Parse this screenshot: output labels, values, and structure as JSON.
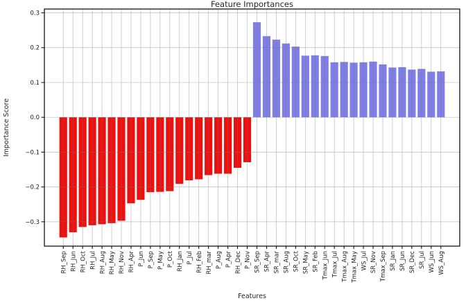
{
  "figure": {
    "title": "Feature Importances",
    "xlabel": "Features",
    "ylabel": "Importance Score"
  },
  "chart_data": {
    "type": "bar",
    "title": "Feature Importances",
    "xlabel": "Features",
    "ylabel": "Importance Score",
    "categories": [
      "RH_Sep",
      "RH_Jun",
      "RH_Oct",
      "RH_Jul",
      "RH_Aug",
      "RH_May",
      "RH_Nov",
      "RH_Apr",
      "P_Jun",
      "P_Sep",
      "P_May",
      "P_Oct",
      "RH_Jan",
      "P_Jul",
      "RH_Feb",
      "RH_mar",
      "P_Aug",
      "P_Apr",
      "RH_Dec",
      "P_Nov",
      "SR_Sep",
      "SR_Apr",
      "SR_mar",
      "SR_Aug",
      "SR_Oct",
      "SR_May",
      "SR_Feb",
      "Tmax_Jun",
      "Tmax_Jul",
      "Tmax_Aug",
      "Tmax_May",
      "WS_Jul",
      "SR_Nov",
      "Tmax_Sep",
      "SR_Jan",
      "SR_Jun",
      "SR_Dec",
      "SR_Jul",
      "WS_Jun",
      "WS_Aug"
    ],
    "values": [
      -0.345,
      -0.33,
      -0.315,
      -0.31,
      -0.307,
      -0.304,
      -0.297,
      -0.247,
      -0.237,
      -0.215,
      -0.214,
      -0.212,
      -0.191,
      -0.181,
      -0.178,
      -0.166,
      -0.162,
      -0.162,
      -0.145,
      -0.129,
      0.273,
      0.233,
      0.223,
      0.212,
      0.203,
      0.177,
      0.178,
      0.176,
      0.158,
      0.159,
      0.157,
      0.158,
      0.16,
      0.152,
      0.143,
      0.144,
      0.137,
      0.139,
      0.131,
      0.132
    ],
    "ylim": [
      -0.37,
      0.311
    ],
    "yticks": [
      0.3,
      0.2,
      0.1,
      0.0,
      -0.1,
      -0.2,
      -0.3
    ],
    "ytick_labels": [
      "0.3",
      "0.2",
      "0.1",
      "0.0",
      "−0.1",
      "−0.2",
      "−0.3"
    ],
    "grid": true,
    "legend_position": "none",
    "colors": {
      "negative_bar": "#ee0f0f",
      "positive_bar": "#7e7ee6",
      "gridline": "#787878",
      "axis": "#000000"
    }
  }
}
